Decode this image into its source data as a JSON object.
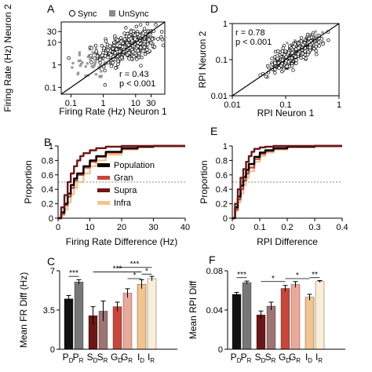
{
  "chart_data": [
    {
      "panel": "A",
      "type": "scatter",
      "xscale": "log",
      "yscale": "log",
      "xlabel": "Firing Rate (Hz) Neuron 1",
      "ylabel": "Firing Rate (Hz) Neuron 2",
      "xlim": [
        0.05,
        80
      ],
      "ylim": [
        0.05,
        80
      ],
      "xticks": [
        {
          "v": 0.1,
          "t": "0.1"
        },
        {
          "v": 1,
          "t": "1"
        },
        {
          "v": 10,
          "t": "10"
        },
        {
          "v": 30,
          "t": "30"
        }
      ],
      "yticks": [
        {
          "v": 0.1,
          "t": "0.1"
        },
        {
          "v": 1,
          "t": "1"
        },
        {
          "v": 10,
          "t": "10"
        },
        {
          "v": 30,
          "t": "30"
        }
      ],
      "legend": {
        "position": "top",
        "entries": [
          {
            "name": "Sync",
            "marker": "open-circle",
            "color": "#000000"
          },
          {
            "name": "UnSync",
            "marker": "square",
            "color": "#8a8a8a"
          }
        ]
      },
      "stats": [
        "r = 0.43",
        "p < 0.001"
      ],
      "identity_line": true,
      "cloud": {
        "sync": {
          "n": 380,
          "logx_mean": 0.75,
          "logx_sd": 0.45,
          "logy_mean": 0.8,
          "logy_sd": 0.38,
          "r": 0.43
        },
        "unsync": {
          "n": 55,
          "logx_mean": -0.2,
          "logx_sd": 0.4,
          "logy_mean": 0.15,
          "logy_sd": 0.45,
          "r": 0.3
        }
      }
    },
    {
      "panel": "D",
      "type": "scatter",
      "xscale": "log",
      "yscale": "log",
      "xlabel": "RPI Neuron 1",
      "ylabel": "RPI Neuron 2",
      "xlim": [
        0.01,
        1
      ],
      "ylim": [
        0.01,
        1
      ],
      "xticks": [
        {
          "v": 0.01,
          "t": "0.01"
        },
        {
          "v": 0.1,
          "t": "0.1"
        },
        {
          "v": 1,
          "t": "1"
        }
      ],
      "yticks": [
        {
          "v": 0.01,
          "t": "0.01"
        },
        {
          "v": 0.1,
          "t": "0.1"
        },
        {
          "v": 1,
          "t": "1"
        }
      ],
      "stats": [
        "r = 0.78",
        "p < 0.001"
      ],
      "identity_line": true,
      "cloud": {
        "sync": {
          "n": 420,
          "logx_mean": -0.85,
          "logx_sd": 0.22,
          "logy_mean": -0.85,
          "logy_sd": 0.22,
          "r": 0.78
        },
        "unsync": {
          "n": 35,
          "logx_mean": -0.6,
          "logx_sd": 0.15,
          "logy_mean": -0.55,
          "logy_sd": 0.15,
          "r": 0.6
        }
      }
    },
    {
      "panel": "B",
      "type": "line",
      "kind": "cumulative distribution",
      "xlabel": "Firing Rate Difference (Hz)",
      "ylabel": "Proportion",
      "xlim": [
        0,
        40
      ],
      "ylim": [
        0,
        1
      ],
      "xticks": [
        0,
        10,
        20,
        30,
        40
      ],
      "yticks": [
        0,
        0.2,
        0.4,
        0.6,
        0.8,
        1
      ],
      "legend": {
        "position": "center-right"
      },
      "series": [
        {
          "name": "Population",
          "color": "#000000",
          "x": [
            0,
            1,
            2,
            3,
            4,
            5,
            6,
            8,
            10,
            12,
            15,
            20,
            25,
            30,
            40
          ],
          "y": [
            0,
            0.08,
            0.2,
            0.34,
            0.46,
            0.55,
            0.62,
            0.72,
            0.8,
            0.86,
            0.92,
            0.97,
            0.99,
            1,
            1
          ]
        },
        {
          "name": "Gran",
          "color": "#c8463a",
          "x": [
            0,
            1,
            2,
            3,
            4,
            5,
            6,
            8,
            10,
            12,
            15,
            20,
            25,
            30,
            40
          ],
          "y": [
            0,
            0.06,
            0.18,
            0.3,
            0.42,
            0.52,
            0.6,
            0.7,
            0.78,
            0.85,
            0.91,
            0.96,
            0.99,
            1,
            1
          ]
        },
        {
          "name": "Supra",
          "color": "#6e1616",
          "x": [
            0,
            1,
            2,
            3,
            4,
            5,
            6,
            7,
            8,
            10,
            12,
            15,
            20,
            40
          ],
          "y": [
            0,
            0.15,
            0.32,
            0.5,
            0.62,
            0.72,
            0.8,
            0.86,
            0.9,
            0.94,
            0.97,
            0.99,
            1,
            1
          ]
        },
        {
          "name": "Infra",
          "color": "#f2c48e",
          "x": [
            0,
            1,
            2,
            3,
            4,
            5,
            6,
            8,
            10,
            12,
            15,
            20,
            25,
            30,
            40
          ],
          "y": [
            0,
            0.04,
            0.12,
            0.22,
            0.33,
            0.42,
            0.5,
            0.62,
            0.72,
            0.8,
            0.88,
            0.95,
            0.98,
            1,
            1
          ]
        }
      ]
    },
    {
      "panel": "E",
      "type": "line",
      "kind": "cumulative distribution",
      "xlabel": "RPI Difference",
      "ylabel": "Proportion",
      "xlim": [
        0,
        0.4
      ],
      "ylim": [
        0,
        1
      ],
      "xticks": [
        0,
        0.1,
        0.2,
        0.3,
        0.4
      ],
      "yticks": [
        0,
        0.2,
        0.4,
        0.6,
        0.8,
        1
      ],
      "series": [
        {
          "name": "Population",
          "color": "#000000",
          "x": [
            0,
            0.01,
            0.02,
            0.03,
            0.04,
            0.05,
            0.06,
            0.08,
            0.1,
            0.12,
            0.15,
            0.2,
            0.3,
            0.4
          ],
          "y": [
            0,
            0.15,
            0.3,
            0.45,
            0.57,
            0.67,
            0.75,
            0.85,
            0.91,
            0.94,
            0.97,
            0.99,
            1,
            1
          ]
        },
        {
          "name": "Gran",
          "color": "#c8463a",
          "x": [
            0,
            0.01,
            0.02,
            0.03,
            0.04,
            0.05,
            0.06,
            0.08,
            0.1,
            0.12,
            0.15,
            0.2,
            0.3,
            0.4
          ],
          "y": [
            0,
            0.12,
            0.26,
            0.4,
            0.52,
            0.62,
            0.7,
            0.82,
            0.89,
            0.93,
            0.96,
            0.99,
            1,
            1
          ]
        },
        {
          "name": "Supra",
          "color": "#6e1616",
          "x": [
            0,
            0.01,
            0.02,
            0.03,
            0.04,
            0.05,
            0.06,
            0.07,
            0.08,
            0.1,
            0.12,
            0.15,
            0.4
          ],
          "y": [
            0,
            0.2,
            0.4,
            0.56,
            0.68,
            0.78,
            0.86,
            0.92,
            0.96,
            0.98,
            0.99,
            1,
            1
          ]
        },
        {
          "name": "Infra",
          "color": "#f2c48e",
          "x": [
            0,
            0.01,
            0.02,
            0.03,
            0.04,
            0.05,
            0.06,
            0.08,
            0.1,
            0.12,
            0.15,
            0.2,
            0.3,
            0.4
          ],
          "y": [
            0,
            0.1,
            0.22,
            0.34,
            0.46,
            0.56,
            0.65,
            0.78,
            0.86,
            0.91,
            0.95,
            0.98,
            1,
            1
          ]
        }
      ]
    },
    {
      "panel": "C",
      "type": "bar",
      "ylabel": "Mean FR Diff (Hz)",
      "ylim": [
        0,
        7
      ],
      "yticks": [
        {
          "v": 0,
          "t": "0"
        },
        {
          "v": 3.5,
          "t": "3.5"
        },
        {
          "v": 7,
          "t": "7"
        }
      ],
      "bars": [
        {
          "label": "P",
          "sub": "D",
          "value": 4.5,
          "err": 0.3,
          "color": "#111111"
        },
        {
          "label": "P",
          "sub": "R",
          "value": 6.0,
          "err": 0.2,
          "color": "#777777"
        },
        {
          "label": "S",
          "sub": "D",
          "value": 3.0,
          "err": 0.8,
          "color": "#6e1616"
        },
        {
          "label": "S",
          "sub": "R",
          "value": 3.4,
          "err": 0.9,
          "color": "#9d7373"
        },
        {
          "label": "G",
          "sub": "D",
          "value": 3.8,
          "err": 0.4,
          "color": "#c8463a"
        },
        {
          "label": "G",
          "sub": "R",
          "value": 5.0,
          "err": 0.4,
          "color": "#eba99b"
        },
        {
          "label": "I",
          "sub": "D",
          "value": 5.8,
          "err": 0.4,
          "color": "#f2c48e"
        },
        {
          "label": "I",
          "sub": "R",
          "value": 6.3,
          "err": 0.2,
          "color": "#fbeed7"
        }
      ],
      "significance": [
        {
          "from": 0,
          "to": 1,
          "label": "***",
          "y": 6.5
        },
        {
          "from": 5,
          "to": 6,
          "label": "*",
          "y": 6.3
        },
        {
          "from": 6,
          "to": 7,
          "label": "*",
          "y": 6.7
        },
        {
          "from": 2,
          "to": 6,
          "label": "***",
          "y": 6.9
        },
        {
          "from": 4,
          "to": 7,
          "label": "***",
          "y": 7.3
        }
      ]
    },
    {
      "panel": "F",
      "type": "bar",
      "ylabel": "Mean RPI Diff",
      "ylim": [
        0,
        0.08
      ],
      "yticks": [
        {
          "v": 0,
          "t": "0"
        },
        {
          "v": 0.04,
          "t": "0.04"
        },
        {
          "v": 0.08,
          "t": "0.08"
        }
      ],
      "bars": [
        {
          "label": "P",
          "sub": "D",
          "value": 0.056,
          "err": 0.002,
          "color": "#111111"
        },
        {
          "label": "P",
          "sub": "R",
          "value": 0.068,
          "err": 0.0015,
          "color": "#777777"
        },
        {
          "label": "S",
          "sub": "D",
          "value": 0.035,
          "err": 0.004,
          "color": "#6e1616"
        },
        {
          "label": "S",
          "sub": "R",
          "value": 0.044,
          "err": 0.004,
          "color": "#9d7373"
        },
        {
          "label": "G",
          "sub": "D",
          "value": 0.062,
          "err": 0.003,
          "color": "#c8463a"
        },
        {
          "label": "G",
          "sub": "R",
          "value": 0.066,
          "err": 0.003,
          "color": "#eba99b"
        },
        {
          "label": "I",
          "sub": "D",
          "value": 0.053,
          "err": 0.003,
          "color": "#f2c48e"
        },
        {
          "label": "I",
          "sub": "R",
          "value": 0.069,
          "err": 0.001,
          "color": "#fbeed7"
        }
      ],
      "significance": [
        {
          "from": 0,
          "to": 1,
          "label": "***",
          "y": 0.073
        },
        {
          "from": 2,
          "to": 4,
          "label": "*",
          "y": 0.069
        },
        {
          "from": 4,
          "to": 6,
          "label": "*",
          "y": 0.072
        },
        {
          "from": 6,
          "to": 7,
          "label": "**",
          "y": 0.073
        }
      ]
    }
  ]
}
